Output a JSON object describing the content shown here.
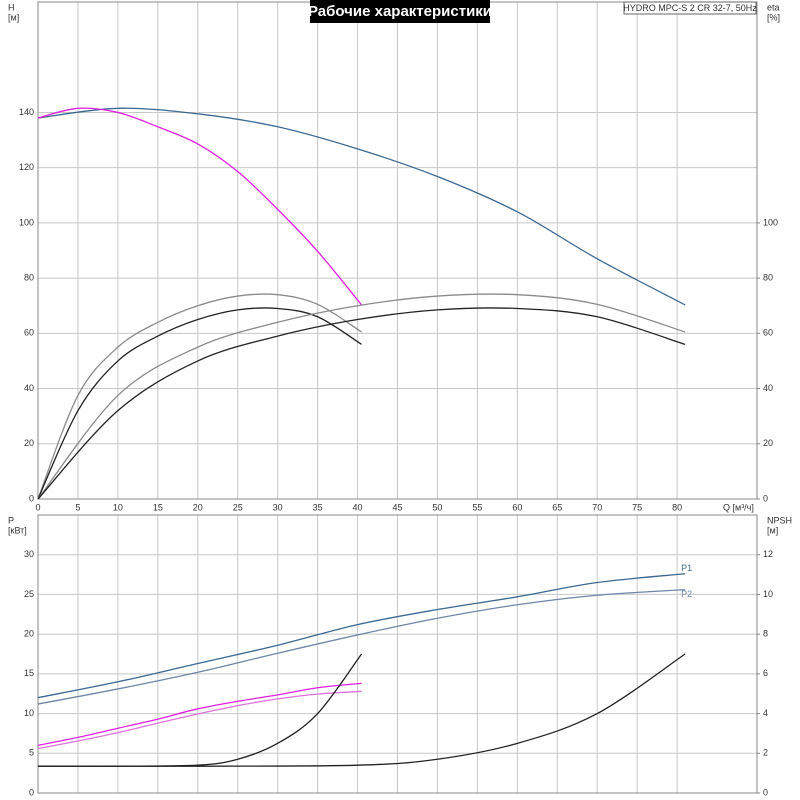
{
  "chart_data": [
    {
      "type": "line",
      "title": "Рабочие характеристики",
      "subtitle": "HYDRO MPC-S 2 CR 32-7, 50Hz",
      "ylabel": [
        "H",
        "[м]"
      ],
      "y2label": [
        "eta",
        "[%]"
      ],
      "xlabel": "Q [м³/ч]",
      "xlim": [
        0,
        90
      ],
      "xticks": [
        0,
        5,
        10,
        15,
        20,
        25,
        30,
        35,
        40,
        45,
        50,
        55,
        60,
        65,
        70,
        75,
        80
      ],
      "ylim": [
        0,
        180
      ],
      "yticks": [
        0,
        20,
        40,
        60,
        80,
        100,
        120,
        140
      ],
      "y2lim": [
        0,
        180
      ],
      "y2ticks": [
        0,
        20,
        40,
        60,
        80,
        100
      ],
      "grid": true,
      "series": [
        {
          "color": "#3b6892",
          "x": [
            0,
            10,
            20,
            30,
            40,
            50,
            60,
            70,
            81
          ],
          "values": [
            138,
            141.5,
            139.5,
            134.8,
            126.8,
            116.8,
            104,
            87,
            70.3
          ]
        },
        {
          "color": "#e020e0",
          "x": [
            0,
            5,
            10,
            15,
            20,
            25,
            30,
            35,
            40.5
          ],
          "values": [
            138,
            141.5,
            140,
            134.8,
            128.6,
            118.6,
            104.9,
            89.7,
            70.3
          ]
        },
        {
          "color": "#8a8a8a",
          "axis": "y2",
          "x": [
            0,
            5,
            10,
            15,
            20,
            25,
            30,
            35,
            40.5
          ],
          "values": [
            0,
            37.5,
            55,
            64,
            70,
            73.5,
            74,
            70.5,
            60.5
          ]
        },
        {
          "color": "#222222",
          "axis": "y2",
          "x": [
            0,
            5,
            10,
            15,
            20,
            25,
            30,
            35,
            40.5
          ],
          "values": [
            0,
            32,
            50,
            59,
            65,
            68.5,
            69,
            66,
            56
          ]
        },
        {
          "color": "#8a8a8a",
          "axis": "y2",
          "x": [
            0,
            10,
            20,
            30,
            40,
            50,
            60,
            70,
            81
          ],
          "values": [
            0,
            37.5,
            55,
            64,
            70,
            73.5,
            74,
            70.5,
            60.5
          ]
        },
        {
          "color": "#222222",
          "axis": "y2",
          "x": [
            0,
            10,
            20,
            30,
            40,
            50,
            60,
            70,
            81
          ],
          "values": [
            0,
            32,
            50,
            59,
            65,
            68.5,
            69,
            66,
            56
          ]
        }
      ]
    },
    {
      "type": "line",
      "ylabel": [
        "P",
        "[кВт]"
      ],
      "y2label": [
        "NPSH",
        "[м]"
      ],
      "xlim": [
        0,
        90
      ],
      "xticks": [
        0,
        5,
        10,
        15,
        20,
        25,
        30,
        35,
        40,
        45,
        50,
        55,
        60,
        65,
        70,
        75,
        80
      ],
      "ylim": [
        0,
        35
      ],
      "yticks": [
        0,
        5,
        10,
        15,
        20,
        25,
        30
      ],
      "y2lim": [
        0,
        14
      ],
      "y2ticks": [
        0,
        2,
        4,
        6,
        8,
        10,
        12
      ],
      "grid": true,
      "series": [
        {
          "name": "P1",
          "color": "#3b6892",
          "x": [
            0,
            10,
            20,
            30,
            40,
            50,
            60,
            70,
            81
          ],
          "values": [
            12,
            14,
            16.3,
            18.6,
            21.2,
            23.1,
            24.7,
            26.5,
            27.6
          ]
        },
        {
          "name": "P2",
          "color": "#6f86a8",
          "x": [
            0,
            10,
            20,
            30,
            40,
            50,
            60,
            70,
            81
          ],
          "values": [
            11.2,
            13.1,
            15.2,
            17.6,
            19.9,
            22,
            23.7,
            24.9,
            25.6
          ]
        },
        {
          "color": "#e020e0",
          "x": [
            0,
            5,
            10,
            15,
            20,
            25,
            30,
            35,
            40.5
          ],
          "values": [
            6,
            7,
            8.15,
            9.3,
            10.6,
            11.55,
            12.35,
            13.25,
            13.8
          ]
        },
        {
          "color": "#e070e0",
          "x": [
            0,
            5,
            10,
            15,
            20,
            25,
            30,
            35,
            40.5
          ],
          "values": [
            5.6,
            6.55,
            7.6,
            8.8,
            9.95,
            11,
            11.85,
            12.45,
            12.8
          ]
        },
        {
          "color": "#222222",
          "axis": "y2",
          "x": [
            0,
            10,
            20,
            25,
            30,
            35,
            40.5
          ],
          "values": [
            1.35,
            1.35,
            1.4,
            1.7,
            2.5,
            4,
            7
          ]
        },
        {
          "color": "#222222",
          "axis": "y2",
          "x": [
            0,
            20,
            40,
            50,
            60,
            70,
            81
          ],
          "values": [
            1.35,
            1.35,
            1.4,
            1.7,
            2.5,
            4,
            7
          ]
        }
      ]
    }
  ]
}
